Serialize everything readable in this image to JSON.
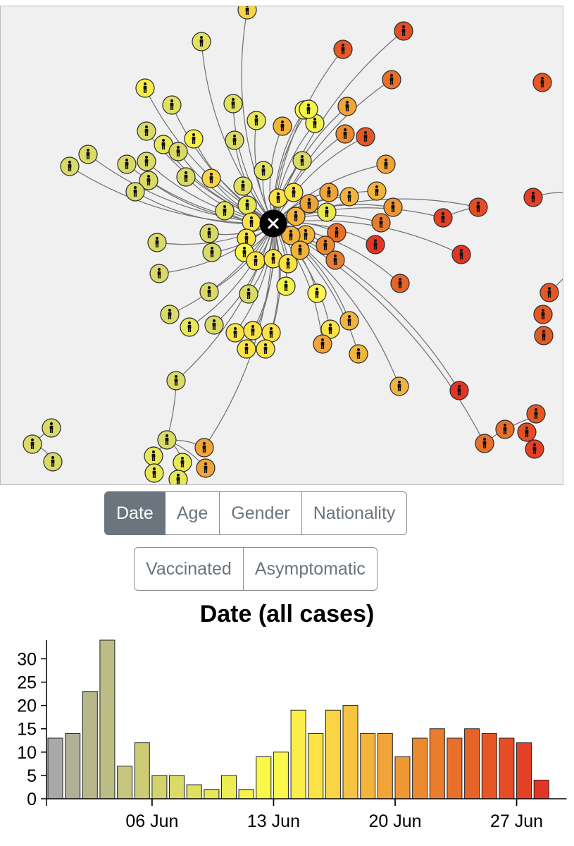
{
  "network": {
    "center_icon": "close-icon",
    "node_icon": "person-icon"
  },
  "filters": {
    "row1": [
      {
        "label": "Date",
        "active": true
      },
      {
        "label": "Age",
        "active": false
      },
      {
        "label": "Gender",
        "active": false
      },
      {
        "label": "Nationality",
        "active": false
      }
    ],
    "row2": [
      {
        "label": "Vaccinated",
        "active": false
      },
      {
        "label": "Asymptomatic",
        "active": false
      }
    ]
  },
  "chart_data": {
    "type": "bar",
    "title": "Date (all cases)",
    "x_start": "2021-05-31",
    "x": [
      "31 May",
      "01 Jun",
      "02 Jun",
      "03 Jun",
      "04 Jun",
      "05 Jun",
      "06 Jun",
      "07 Jun",
      "08 Jun",
      "09 Jun",
      "10 Jun",
      "11 Jun",
      "12 Jun",
      "13 Jun",
      "14 Jun",
      "15 Jun",
      "16 Jun",
      "17 Jun",
      "18 Jun",
      "19 Jun",
      "20 Jun",
      "21 Jun",
      "22 Jun",
      "23 Jun",
      "24 Jun",
      "25 Jun",
      "26 Jun",
      "27 Jun",
      "28 Jun",
      "29 Jun"
    ],
    "values": [
      13,
      14,
      23,
      34,
      7,
      12,
      5,
      5,
      3,
      2,
      5,
      2,
      9,
      10,
      19,
      14,
      19,
      20,
      14,
      14,
      9,
      13,
      15,
      13,
      15,
      14,
      13,
      12,
      4,
      0
    ],
    "colors": [
      "#a8a8a8",
      "#b0b096",
      "#b7b78a",
      "#bcbc85",
      "#c5c57c",
      "#cccc74",
      "#d3d36d",
      "#dada67",
      "#e1e15f",
      "#e8e857",
      "#eded52",
      "#f3f34b",
      "#f8f84a",
      "#fbf74c",
      "#fcee4a",
      "#fbe247",
      "#f9d444",
      "#f6c440",
      "#f3b43c",
      "#f1a538",
      "#ee9734",
      "#ec8a30",
      "#ea7d2d",
      "#e8702a",
      "#e66427",
      "#e55826",
      "#e44d26",
      "#e34126",
      "#e23524",
      "#e23524"
    ],
    "ylim": [
      0,
      34
    ],
    "yticks": [
      0,
      5,
      10,
      15,
      20,
      25,
      30
    ],
    "xticks": [
      {
        "index": 6,
        "label": "06 Jun"
      },
      {
        "index": 13,
        "label": "13 Jun"
      },
      {
        "index": 20,
        "label": "20 Jun"
      },
      {
        "index": 27,
        "label": "27 Jun"
      }
    ],
    "grid": false,
    "xlabel": "",
    "ylabel": ""
  }
}
